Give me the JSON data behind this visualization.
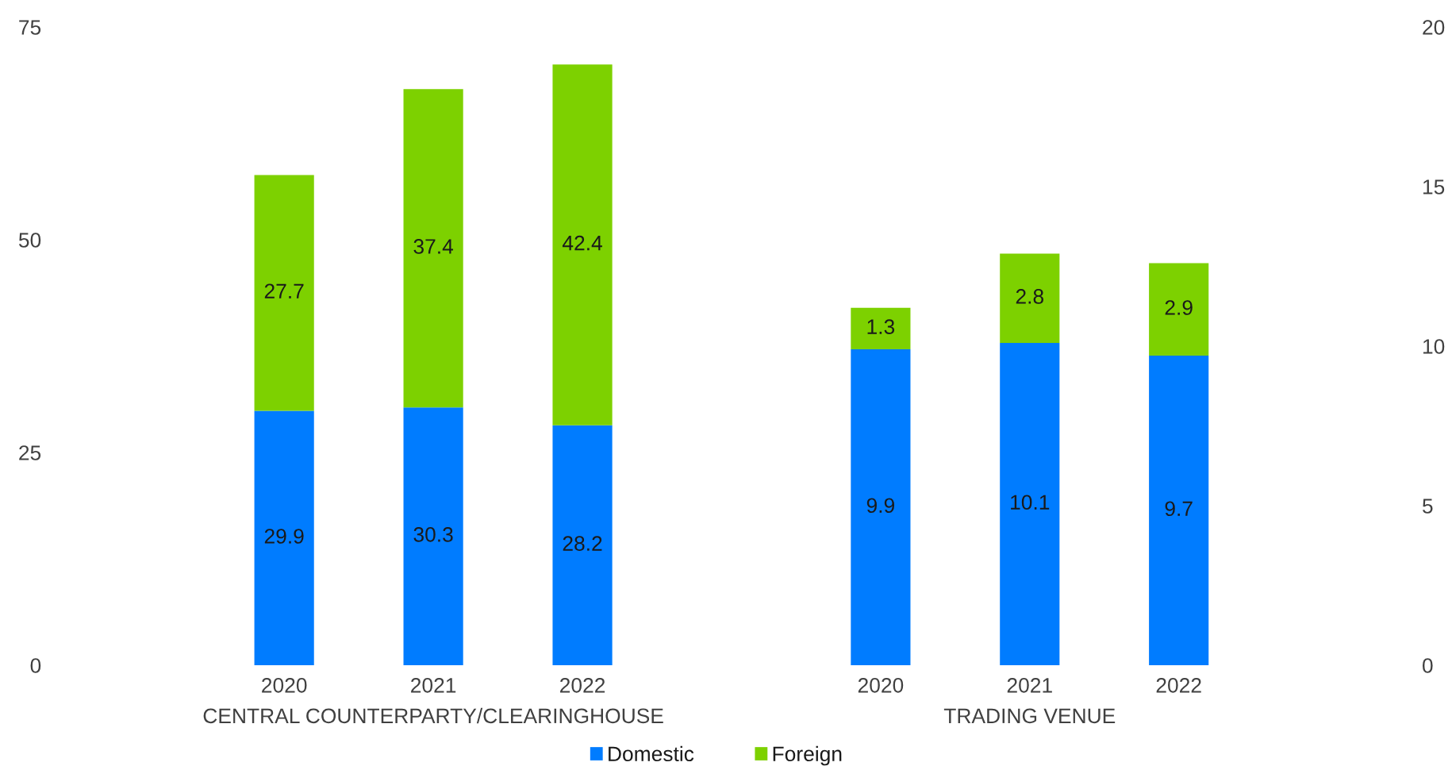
{
  "chart_data": [
    {
      "type": "bar",
      "stacked": true,
      "categories": [
        "2020",
        "2021",
        "2022"
      ],
      "xlabel": "CENTRAL COUNTERPARTY/CLEARINGHOUSE",
      "ylim": [
        0,
        75
      ],
      "yticks": [
        0,
        25,
        50,
        75
      ],
      "series": [
        {
          "name": "Domestic",
          "color": "#007cff",
          "values": [
            29.9,
            30.3,
            28.2
          ]
        },
        {
          "name": "Foreign",
          "color": "#7dd100",
          "values": [
            27.7,
            37.4,
            42.4
          ]
        }
      ],
      "data_labels": true,
      "legend": "bottom",
      "grid": false
    },
    {
      "type": "bar",
      "stacked": true,
      "categories": [
        "2020",
        "2021",
        "2022"
      ],
      "xlabel": "TRADING VENUE",
      "y2lim": [
        0,
        20
      ],
      "y2ticks": [
        0,
        5,
        10,
        15,
        20
      ],
      "series": [
        {
          "color": "#007cff",
          "axis": "y2",
          "values": [
            9.9,
            10.1,
            9.7
          ]
        },
        {
          "color": "#7dd100",
          "axis": "y2",
          "values": [
            1.3,
            2.8,
            2.9
          ]
        }
      ],
      "data_labels": true,
      "grid": false
    }
  ]
}
